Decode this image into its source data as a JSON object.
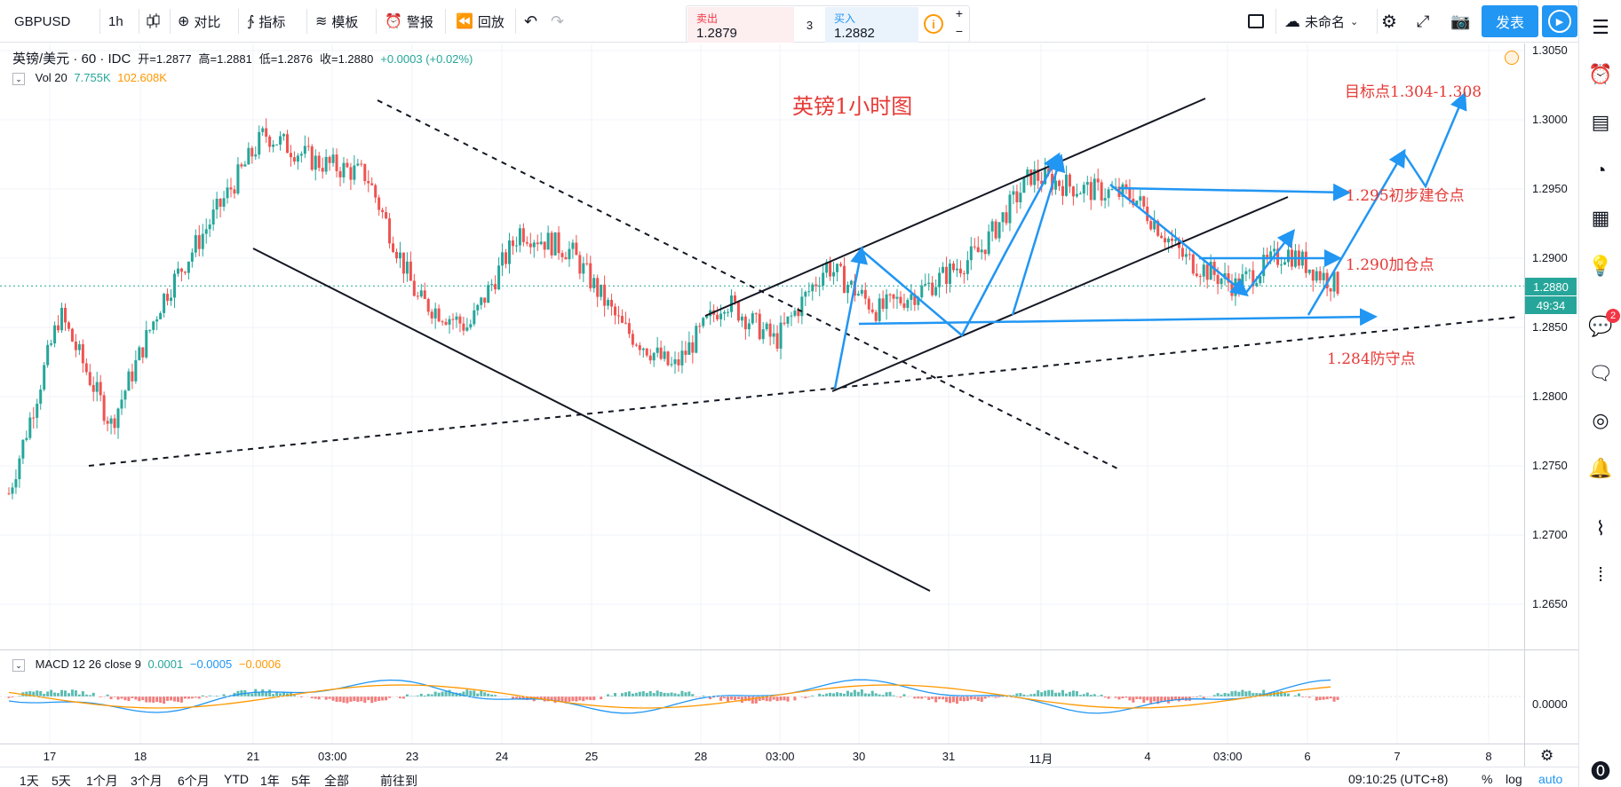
{
  "toolbar": {
    "symbol": "GBPUSD",
    "interval": "1h",
    "compare": "对比",
    "indicators": "指标",
    "templates": "模板",
    "alert": "警报",
    "replay": "回放",
    "unnamed": "未命名",
    "publish": "发表"
  },
  "trade": {
    "sell_label": "卖出",
    "sell_price": "1.2879",
    "spread": "3",
    "buy_label": "买入",
    "buy_price": "1.2882"
  },
  "legend": {
    "title": "英镑/美元 · 60 · IDC",
    "open": "开=1.2877",
    "high": "高=1.2881",
    "low": "低=1.2876",
    "close": "收=1.2880",
    "change": "+0.0003 (+0.02%)",
    "vol_label": "Vol 20",
    "vol_value": "7.755K",
    "vol_ma": "102.608K",
    "macd_label": "MACD 12 26 close 9",
    "macd_v1": "0.0001",
    "macd_v2": "−0.0005",
    "macd_v3": "−0.0006"
  },
  "annotations": {
    "title": "英镑1小时图",
    "target": "目标点1.304-1.308",
    "entry1": "1.295初步建仓点",
    "entry2": "1.290加仓点",
    "defense": "1.284防守点"
  },
  "price_axis": {
    "labels": [
      "1.3050",
      "1.3000",
      "1.2950",
      "1.2900",
      "1.2850",
      "1.2800",
      "1.2750",
      "1.2700",
      "1.2650"
    ],
    "current_price": "1.2880",
    "countdown": "49:34",
    "macd_zero": "0.0000"
  },
  "time_axis": {
    "labels": [
      "17",
      "18",
      "21",
      "03:00",
      "23",
      "24",
      "25",
      "28",
      "03:00",
      "30",
      "31",
      "11月",
      "4",
      "03:00",
      "6",
      "7",
      "8"
    ]
  },
  "bottom": {
    "ranges": [
      "1天",
      "5天",
      "1个月",
      "3个月",
      "6个月",
      "YTD",
      "1年",
      "5年",
      "全部"
    ],
    "goto": "前往到",
    "clock": "09:10:25 (UTC+8)",
    "percent": "%",
    "log": "log",
    "auto": "auto"
  },
  "sidebar": {
    "alert_badge": "2"
  },
  "colors": {
    "up": "#26a69a",
    "down": "#ef5350",
    "accent": "#2196f3",
    "annotation": "#e53935",
    "macd": "#2196f3",
    "signal": "#ff9800"
  },
  "chart_data": {
    "type": "candlestick",
    "title": "英镑1小时图",
    "symbol": "GBPUSD",
    "ylim": [
      1.2625,
      1.3065
    ],
    "close_path": [
      {
        "x": "17",
        "y": 1.273
      },
      {
        "x": "17",
        "y": 1.286
      },
      {
        "x": "18",
        "y": 1.278
      },
      {
        "x": "18",
        "y": 1.287
      },
      {
        "x": "21",
        "y": 1.293
      },
      {
        "x": "21",
        "y": 1.299
      },
      {
        "x": "03:00",
        "y": 1.297
      },
      {
        "x": "23",
        "y": 1.296
      },
      {
        "x": "23",
        "y": 1.287
      },
      {
        "x": "24",
        "y": 1.285
      },
      {
        "x": "24",
        "y": 1.292
      },
      {
        "x": "25",
        "y": 1.2905
      },
      {
        "x": "25",
        "y": 1.285
      },
      {
        "x": "28",
        "y": 1.282
      },
      {
        "x": "03:00",
        "y": 1.287
      },
      {
        "x": "03:00",
        "y": 1.284
      },
      {
        "x": "30",
        "y": 1.2895
      },
      {
        "x": "30",
        "y": 1.2862
      },
      {
        "x": "31",
        "y": 1.288
      },
      {
        "x": "31",
        "y": 1.2905
      },
      {
        "x": "11月",
        "y": 1.296
      },
      {
        "x": "11月",
        "y": 1.295
      },
      {
        "x": "4",
        "y": 1.2945
      },
      {
        "x": "03:00",
        "y": 1.29
      },
      {
        "x": "03:00",
        "y": 1.288
      },
      {
        "x": "6",
        "y": 1.2905
      },
      {
        "x": "6",
        "y": 1.288
      }
    ],
    "levels": [
      {
        "label": "1.295初步建仓点",
        "y": 1.295
      },
      {
        "label": "1.290加仓点",
        "y": 1.29
      },
      {
        "label": "1.284防守点",
        "y": 1.284
      },
      {
        "label": "目标点1.304-1.308",
        "y": 1.306
      }
    ]
  }
}
